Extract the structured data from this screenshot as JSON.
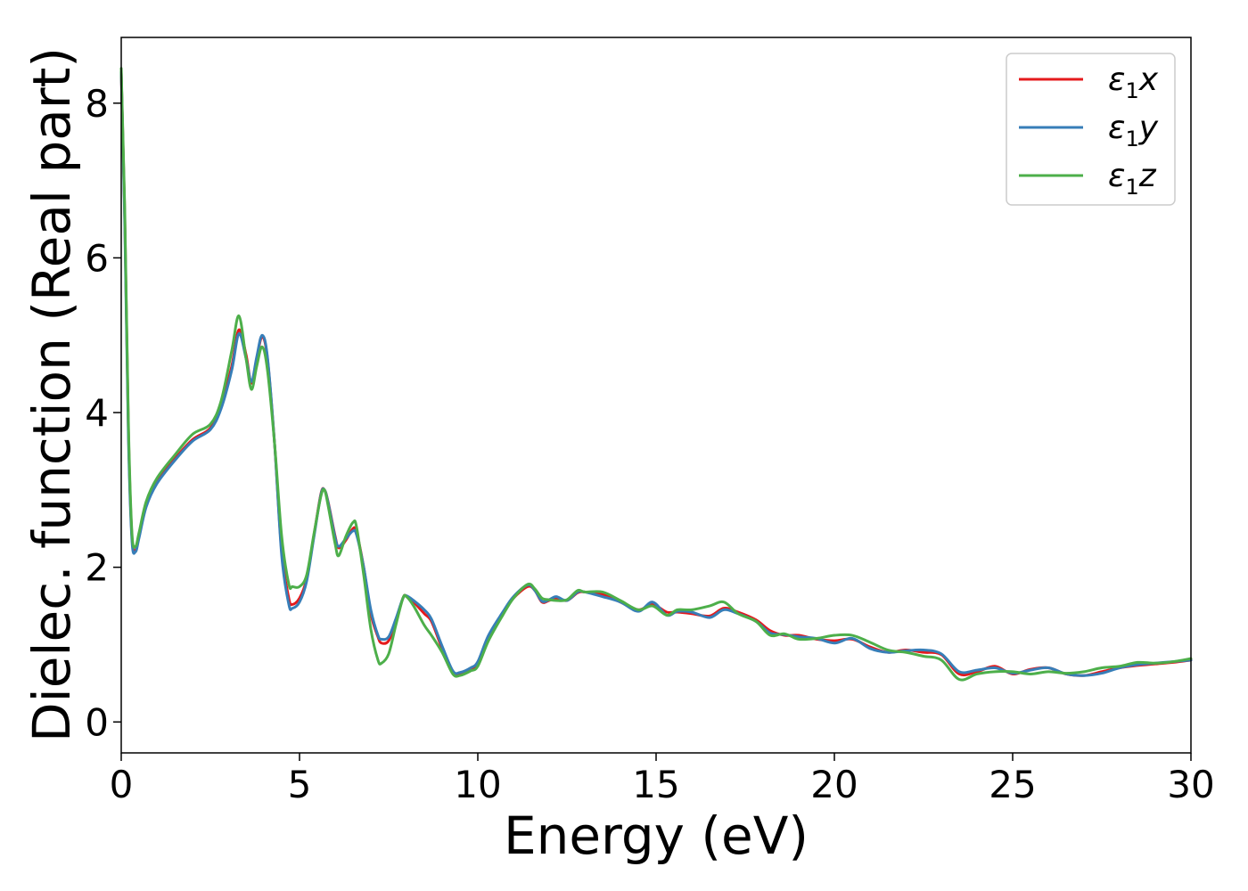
{
  "chart_data": {
    "type": "line",
    "title": "",
    "xlabel": "Energy (eV)",
    "ylabel": "Dielec. function (Real part)",
    "xlim": [
      0,
      30
    ],
    "ylim": [
      -0.4,
      8.85
    ],
    "xticks": [
      0,
      5,
      10,
      15,
      20,
      25,
      30
    ],
    "yticks": [
      0,
      2,
      4,
      6,
      8
    ],
    "grid": false,
    "legend_position": "top-right",
    "series": [
      {
        "name": "ε1x",
        "label_main": "ε",
        "label_sub": "1",
        "label_axis": "x",
        "color": "#e41a1c",
        "points": [
          [
            0,
            8.4
          ],
          [
            0.1,
            6.5
          ],
          [
            0.2,
            3.8
          ],
          [
            0.3,
            2.4
          ],
          [
            0.4,
            2.22
          ],
          [
            0.5,
            2.4
          ],
          [
            0.7,
            2.8
          ],
          [
            1.0,
            3.1
          ],
          [
            1.5,
            3.4
          ],
          [
            2.0,
            3.65
          ],
          [
            2.5,
            3.8
          ],
          [
            2.8,
            4.1
          ],
          [
            3.1,
            4.6
          ],
          [
            3.3,
            5.07
          ],
          [
            3.5,
            4.75
          ],
          [
            3.65,
            4.38
          ],
          [
            3.8,
            4.7
          ],
          [
            3.95,
            4.98
          ],
          [
            4.1,
            4.7
          ],
          [
            4.3,
            3.6
          ],
          [
            4.5,
            2.2
          ],
          [
            4.7,
            1.6
          ],
          [
            4.8,
            1.52
          ],
          [
            5.0,
            1.6
          ],
          [
            5.2,
            1.85
          ],
          [
            5.4,
            2.4
          ],
          [
            5.6,
            2.95
          ],
          [
            5.7,
            3.0
          ],
          [
            5.8,
            2.85
          ],
          [
            6.0,
            2.4
          ],
          [
            6.1,
            2.25
          ],
          [
            6.3,
            2.35
          ],
          [
            6.5,
            2.5
          ],
          [
            6.6,
            2.45
          ],
          [
            6.8,
            2.0
          ],
          [
            7.0,
            1.4
          ],
          [
            7.2,
            1.1
          ],
          [
            7.3,
            1.02
          ],
          [
            7.5,
            1.05
          ],
          [
            7.7,
            1.3
          ],
          [
            7.9,
            1.6
          ],
          [
            8.0,
            1.63
          ],
          [
            8.2,
            1.55
          ],
          [
            8.5,
            1.4
          ],
          [
            8.7,
            1.3
          ],
          [
            9.0,
            0.95
          ],
          [
            9.3,
            0.65
          ],
          [
            9.5,
            0.63
          ],
          [
            9.8,
            0.68
          ],
          [
            10.0,
            0.75
          ],
          [
            10.3,
            1.1
          ],
          [
            10.7,
            1.4
          ],
          [
            11.0,
            1.6
          ],
          [
            11.4,
            1.75
          ],
          [
            11.6,
            1.7
          ],
          [
            11.8,
            1.55
          ],
          [
            12.0,
            1.57
          ],
          [
            12.2,
            1.6
          ],
          [
            12.5,
            1.57
          ],
          [
            12.8,
            1.67
          ],
          [
            13.0,
            1.68
          ],
          [
            13.5,
            1.65
          ],
          [
            14.0,
            1.55
          ],
          [
            14.5,
            1.45
          ],
          [
            14.9,
            1.52
          ],
          [
            15.3,
            1.42
          ],
          [
            15.6,
            1.42
          ],
          [
            16.0,
            1.4
          ],
          [
            16.5,
            1.37
          ],
          [
            16.9,
            1.47
          ],
          [
            17.3,
            1.42
          ],
          [
            17.8,
            1.32
          ],
          [
            18.2,
            1.18
          ],
          [
            18.6,
            1.12
          ],
          [
            19.0,
            1.12
          ],
          [
            19.5,
            1.07
          ],
          [
            20.0,
            1.05
          ],
          [
            20.5,
            1.07
          ],
          [
            21.0,
            0.97
          ],
          [
            21.5,
            0.9
          ],
          [
            22.0,
            0.93
          ],
          [
            22.5,
            0.9
          ],
          [
            23.0,
            0.87
          ],
          [
            23.5,
            0.62
          ],
          [
            24.0,
            0.65
          ],
          [
            24.5,
            0.72
          ],
          [
            25.0,
            0.62
          ],
          [
            25.5,
            0.68
          ],
          [
            26.0,
            0.7
          ],
          [
            26.5,
            0.62
          ],
          [
            27.0,
            0.6
          ],
          [
            27.5,
            0.65
          ],
          [
            28.0,
            0.7
          ],
          [
            28.5,
            0.73
          ],
          [
            29.0,
            0.75
          ],
          [
            29.5,
            0.77
          ],
          [
            30.0,
            0.8
          ]
        ]
      },
      {
        "name": "ε1y",
        "label_main": "ε",
        "label_sub": "1",
        "label_axis": "y",
        "color": "#377eb8",
        "points": [
          [
            0,
            8.4
          ],
          [
            0.1,
            6.4
          ],
          [
            0.2,
            3.7
          ],
          [
            0.3,
            2.35
          ],
          [
            0.4,
            2.2
          ],
          [
            0.5,
            2.38
          ],
          [
            0.7,
            2.78
          ],
          [
            1.0,
            3.08
          ],
          [
            1.5,
            3.38
          ],
          [
            2.0,
            3.63
          ],
          [
            2.5,
            3.78
          ],
          [
            2.8,
            4.05
          ],
          [
            3.1,
            4.55
          ],
          [
            3.3,
            5.02
          ],
          [
            3.5,
            4.7
          ],
          [
            3.65,
            4.4
          ],
          [
            3.8,
            4.72
          ],
          [
            3.95,
            5.0
          ],
          [
            4.1,
            4.72
          ],
          [
            4.3,
            3.6
          ],
          [
            4.5,
            2.15
          ],
          [
            4.7,
            1.52
          ],
          [
            4.8,
            1.47
          ],
          [
            5.0,
            1.55
          ],
          [
            5.2,
            1.82
          ],
          [
            5.4,
            2.38
          ],
          [
            5.6,
            2.94
          ],
          [
            5.7,
            3.0
          ],
          [
            5.8,
            2.84
          ],
          [
            6.0,
            2.38
          ],
          [
            6.1,
            2.27
          ],
          [
            6.3,
            2.37
          ],
          [
            6.5,
            2.47
          ],
          [
            6.6,
            2.42
          ],
          [
            6.8,
            2.0
          ],
          [
            7.0,
            1.45
          ],
          [
            7.2,
            1.12
          ],
          [
            7.3,
            1.07
          ],
          [
            7.5,
            1.1
          ],
          [
            7.7,
            1.33
          ],
          [
            7.9,
            1.6
          ],
          [
            8.0,
            1.63
          ],
          [
            8.2,
            1.57
          ],
          [
            8.5,
            1.45
          ],
          [
            8.7,
            1.33
          ],
          [
            9.0,
            0.98
          ],
          [
            9.3,
            0.66
          ],
          [
            9.5,
            0.64
          ],
          [
            9.8,
            0.7
          ],
          [
            10.0,
            0.78
          ],
          [
            10.3,
            1.12
          ],
          [
            10.7,
            1.42
          ],
          [
            11.0,
            1.62
          ],
          [
            11.4,
            1.77
          ],
          [
            11.6,
            1.7
          ],
          [
            11.8,
            1.56
          ],
          [
            12.0,
            1.58
          ],
          [
            12.2,
            1.62
          ],
          [
            12.5,
            1.57
          ],
          [
            12.8,
            1.68
          ],
          [
            13.0,
            1.68
          ],
          [
            13.5,
            1.62
          ],
          [
            14.0,
            1.55
          ],
          [
            14.5,
            1.43
          ],
          [
            14.9,
            1.55
          ],
          [
            15.3,
            1.38
          ],
          [
            15.6,
            1.43
          ],
          [
            16.0,
            1.42
          ],
          [
            16.5,
            1.35
          ],
          [
            16.9,
            1.45
          ],
          [
            17.3,
            1.4
          ],
          [
            17.8,
            1.3
          ],
          [
            18.2,
            1.15
          ],
          [
            18.6,
            1.13
          ],
          [
            19.0,
            1.1
          ],
          [
            19.5,
            1.08
          ],
          [
            20.0,
            1.02
          ],
          [
            20.5,
            1.08
          ],
          [
            21.0,
            0.95
          ],
          [
            21.5,
            0.9
          ],
          [
            22.0,
            0.92
          ],
          [
            22.5,
            0.93
          ],
          [
            23.0,
            0.88
          ],
          [
            23.5,
            0.65
          ],
          [
            24.0,
            0.67
          ],
          [
            24.5,
            0.7
          ],
          [
            25.0,
            0.63
          ],
          [
            25.5,
            0.67
          ],
          [
            26.0,
            0.7
          ],
          [
            26.5,
            0.62
          ],
          [
            27.0,
            0.6
          ],
          [
            27.5,
            0.63
          ],
          [
            28.0,
            0.7
          ],
          [
            28.5,
            0.74
          ],
          [
            29.0,
            0.76
          ],
          [
            29.5,
            0.78
          ],
          [
            30.0,
            0.8
          ]
        ]
      },
      {
        "name": "ε1z",
        "label_main": "ε",
        "label_sub": "1",
        "label_axis": "z",
        "color": "#4daf4a",
        "points": [
          [
            0,
            8.45
          ],
          [
            0.1,
            6.6
          ],
          [
            0.2,
            3.9
          ],
          [
            0.3,
            2.45
          ],
          [
            0.4,
            2.27
          ],
          [
            0.5,
            2.45
          ],
          [
            0.7,
            2.85
          ],
          [
            1.0,
            3.15
          ],
          [
            1.5,
            3.45
          ],
          [
            2.0,
            3.72
          ],
          [
            2.5,
            3.85
          ],
          [
            2.8,
            4.15
          ],
          [
            3.1,
            4.8
          ],
          [
            3.3,
            5.25
          ],
          [
            3.5,
            4.7
          ],
          [
            3.65,
            4.3
          ],
          [
            3.8,
            4.6
          ],
          [
            3.95,
            4.85
          ],
          [
            4.1,
            4.55
          ],
          [
            4.3,
            3.6
          ],
          [
            4.5,
            2.4
          ],
          [
            4.7,
            1.78
          ],
          [
            4.8,
            1.75
          ],
          [
            5.0,
            1.75
          ],
          [
            5.2,
            1.9
          ],
          [
            5.4,
            2.42
          ],
          [
            5.6,
            2.92
          ],
          [
            5.7,
            3.0
          ],
          [
            5.8,
            2.8
          ],
          [
            6.0,
            2.3
          ],
          [
            6.1,
            2.15
          ],
          [
            6.3,
            2.4
          ],
          [
            6.5,
            2.58
          ],
          [
            6.6,
            2.52
          ],
          [
            6.8,
            1.9
          ],
          [
            7.0,
            1.2
          ],
          [
            7.2,
            0.8
          ],
          [
            7.3,
            0.76
          ],
          [
            7.5,
            0.88
          ],
          [
            7.7,
            1.25
          ],
          [
            7.9,
            1.6
          ],
          [
            8.0,
            1.62
          ],
          [
            8.2,
            1.5
          ],
          [
            8.5,
            1.25
          ],
          [
            8.7,
            1.12
          ],
          [
            9.0,
            0.9
          ],
          [
            9.3,
            0.62
          ],
          [
            9.5,
            0.6
          ],
          [
            9.8,
            0.66
          ],
          [
            10.0,
            0.72
          ],
          [
            10.3,
            1.05
          ],
          [
            10.7,
            1.38
          ],
          [
            11.0,
            1.6
          ],
          [
            11.4,
            1.78
          ],
          [
            11.6,
            1.72
          ],
          [
            11.8,
            1.6
          ],
          [
            12.0,
            1.58
          ],
          [
            12.2,
            1.57
          ],
          [
            12.5,
            1.58
          ],
          [
            12.8,
            1.7
          ],
          [
            13.0,
            1.68
          ],
          [
            13.5,
            1.68
          ],
          [
            14.0,
            1.57
          ],
          [
            14.5,
            1.45
          ],
          [
            14.9,
            1.5
          ],
          [
            15.3,
            1.38
          ],
          [
            15.6,
            1.45
          ],
          [
            16.0,
            1.45
          ],
          [
            16.5,
            1.5
          ],
          [
            16.9,
            1.55
          ],
          [
            17.3,
            1.4
          ],
          [
            17.8,
            1.3
          ],
          [
            18.2,
            1.12
          ],
          [
            18.6,
            1.14
          ],
          [
            19.0,
            1.07
          ],
          [
            19.5,
            1.08
          ],
          [
            20.0,
            1.12
          ],
          [
            20.5,
            1.12
          ],
          [
            21.0,
            1.03
          ],
          [
            21.5,
            0.93
          ],
          [
            22.0,
            0.9
          ],
          [
            22.5,
            0.85
          ],
          [
            23.0,
            0.8
          ],
          [
            23.5,
            0.55
          ],
          [
            24.0,
            0.62
          ],
          [
            24.5,
            0.65
          ],
          [
            25.0,
            0.65
          ],
          [
            25.5,
            0.62
          ],
          [
            26.0,
            0.65
          ],
          [
            26.5,
            0.63
          ],
          [
            27.0,
            0.65
          ],
          [
            27.5,
            0.7
          ],
          [
            28.0,
            0.72
          ],
          [
            28.5,
            0.77
          ],
          [
            29.0,
            0.76
          ],
          [
            29.5,
            0.78
          ],
          [
            30.0,
            0.82
          ]
        ]
      }
    ]
  }
}
